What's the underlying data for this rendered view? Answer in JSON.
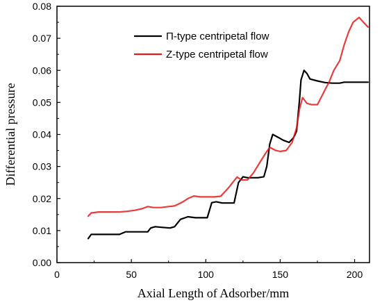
{
  "chart_data": {
    "type": "line",
    "title": "",
    "xlabel": "Axial Length of Adsorber/mm",
    "ylabel": "Differential pressure",
    "xlim": [
      0,
      210
    ],
    "ylim": [
      0.0,
      0.08
    ],
    "xticks": [
      0,
      50,
      100,
      150,
      200
    ],
    "yticks": [
      0.0,
      0.01,
      0.02,
      0.03,
      0.04,
      0.05,
      0.06,
      0.07,
      0.08
    ],
    "xtick_labels": [
      "0",
      "50",
      "100",
      "150",
      "200"
    ],
    "ytick_labels": [
      "0.00",
      "0.01",
      "0.02",
      "0.03",
      "0.04",
      "0.05",
      "0.06",
      "0.07",
      "0.08"
    ],
    "grid": false,
    "legend_position": "top-right",
    "series": [
      {
        "name": "Π-type centripetal flow",
        "color": "#000000",
        "points": [
          [
            21,
            0.0075
          ],
          [
            23,
            0.0088
          ],
          [
            26,
            0.0088
          ],
          [
            30,
            0.0088
          ],
          [
            36,
            0.0088
          ],
          [
            42,
            0.0088
          ],
          [
            46,
            0.0096
          ],
          [
            52,
            0.0096
          ],
          [
            57,
            0.0096
          ],
          [
            61,
            0.0096
          ],
          [
            63,
            0.0108
          ],
          [
            66,
            0.0112
          ],
          [
            71,
            0.011
          ],
          [
            76,
            0.0108
          ],
          [
            79,
            0.0112
          ],
          [
            83,
            0.0135
          ],
          [
            88,
            0.0143
          ],
          [
            93,
            0.014
          ],
          [
            98,
            0.014
          ],
          [
            101,
            0.014
          ],
          [
            104,
            0.0187
          ],
          [
            107,
            0.019
          ],
          [
            111,
            0.0186
          ],
          [
            116,
            0.0186
          ],
          [
            119,
            0.0186
          ],
          [
            122,
            0.025
          ],
          [
            125,
            0.0268
          ],
          [
            128,
            0.0265
          ],
          [
            131,
            0.0265
          ],
          [
            135,
            0.0265
          ],
          [
            139,
            0.0268
          ],
          [
            141,
            0.03
          ],
          [
            143,
            0.037
          ],
          [
            145,
            0.04
          ],
          [
            149,
            0.039
          ],
          [
            152,
            0.0382
          ],
          [
            156,
            0.0375
          ],
          [
            159,
            0.039
          ],
          [
            161,
            0.041
          ],
          [
            163,
            0.051
          ],
          [
            164,
            0.057
          ],
          [
            166,
            0.06
          ],
          [
            168,
            0.059
          ],
          [
            170,
            0.0573
          ],
          [
            175,
            0.0567
          ],
          [
            180,
            0.0562
          ],
          [
            185,
            0.056
          ],
          [
            190,
            0.056
          ],
          [
            193,
            0.0563
          ],
          [
            198,
            0.0563
          ],
          [
            204,
            0.0563
          ],
          [
            209,
            0.0563
          ]
        ]
      },
      {
        "name": "Z-type centripetal flow",
        "color": "#e8191b",
        "points": [
          [
            21,
            0.0145
          ],
          [
            23,
            0.0155
          ],
          [
            28,
            0.0158
          ],
          [
            35,
            0.0158
          ],
          [
            42,
            0.0158
          ],
          [
            47,
            0.016
          ],
          [
            52,
            0.0163
          ],
          [
            57,
            0.0168
          ],
          [
            61,
            0.0175
          ],
          [
            65,
            0.0172
          ],
          [
            70,
            0.0172
          ],
          [
            75,
            0.0175
          ],
          [
            79,
            0.0177
          ],
          [
            84,
            0.0188
          ],
          [
            88,
            0.02
          ],
          [
            92,
            0.0208
          ],
          [
            96,
            0.0205
          ],
          [
            101,
            0.0205
          ],
          [
            106,
            0.0205
          ],
          [
            110,
            0.0207
          ],
          [
            115,
            0.0232
          ],
          [
            121,
            0.0267
          ],
          [
            124,
            0.0258
          ],
          [
            128,
            0.0258
          ],
          [
            132,
            0.028
          ],
          [
            136,
            0.031
          ],
          [
            140,
            0.034
          ],
          [
            143,
            0.036
          ],
          [
            147,
            0.035
          ],
          [
            150,
            0.0347
          ],
          [
            154,
            0.035
          ],
          [
            158,
            0.0375
          ],
          [
            161,
            0.042
          ],
          [
            163,
            0.048
          ],
          [
            165,
            0.0515
          ],
          [
            168,
            0.0497
          ],
          [
            171,
            0.0493
          ],
          [
            175,
            0.0493
          ],
          [
            178,
            0.052
          ],
          [
            183,
            0.0565
          ],
          [
            186,
            0.06
          ],
          [
            190,
            0.063
          ],
          [
            193,
            0.068
          ],
          [
            196,
            0.072
          ],
          [
            199,
            0.075
          ],
          [
            203,
            0.0765
          ],
          [
            206,
            0.075
          ],
          [
            209,
            0.0735
          ]
        ]
      }
    ]
  }
}
